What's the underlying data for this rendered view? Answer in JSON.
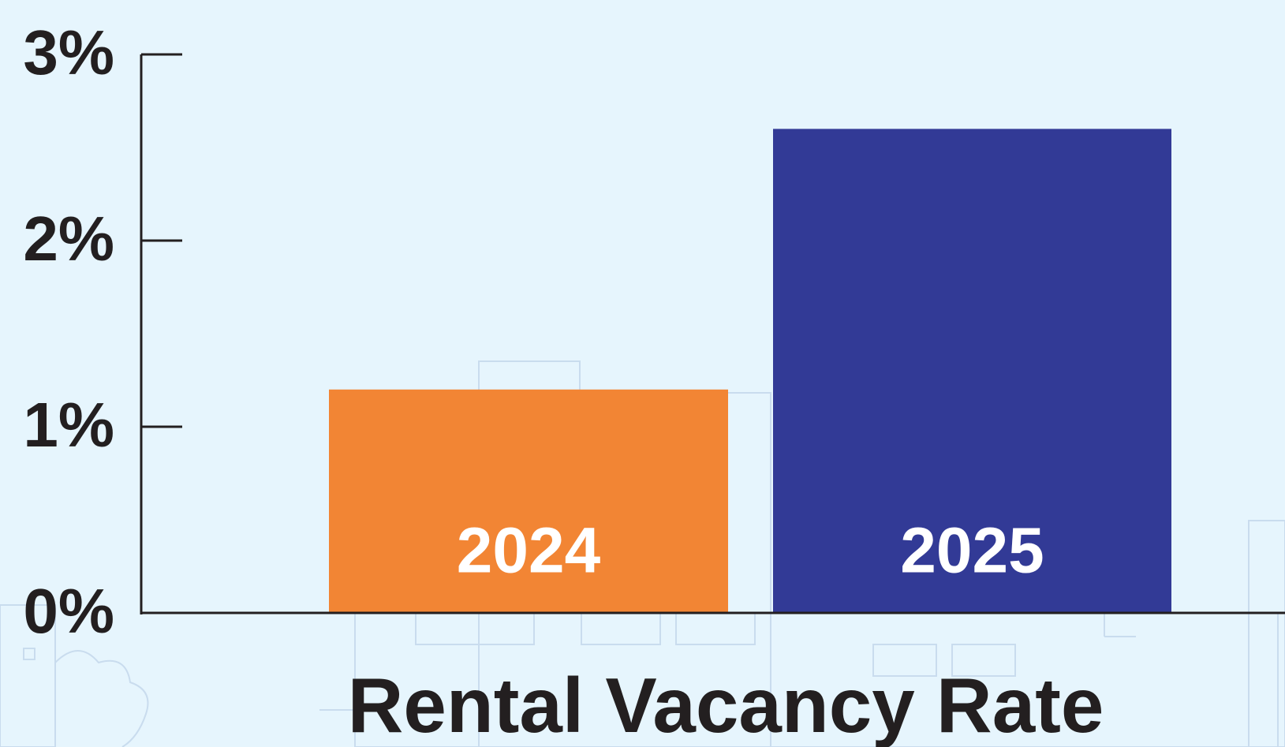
{
  "chart_data": {
    "type": "bar",
    "title": "Rental Vacancy Rate",
    "categories": [
      "2024",
      "2025"
    ],
    "values": [
      1.2,
      2.6
    ],
    "colors": [
      "#f28534",
      "#323a96"
    ],
    "ylim": [
      0,
      3
    ],
    "yticks": [
      {
        "value": 0,
        "label": "0%"
      },
      {
        "value": 1,
        "label": "1%"
      },
      {
        "value": 2,
        "label": "2%"
      },
      {
        "value": 3,
        "label": "3%"
      }
    ]
  }
}
